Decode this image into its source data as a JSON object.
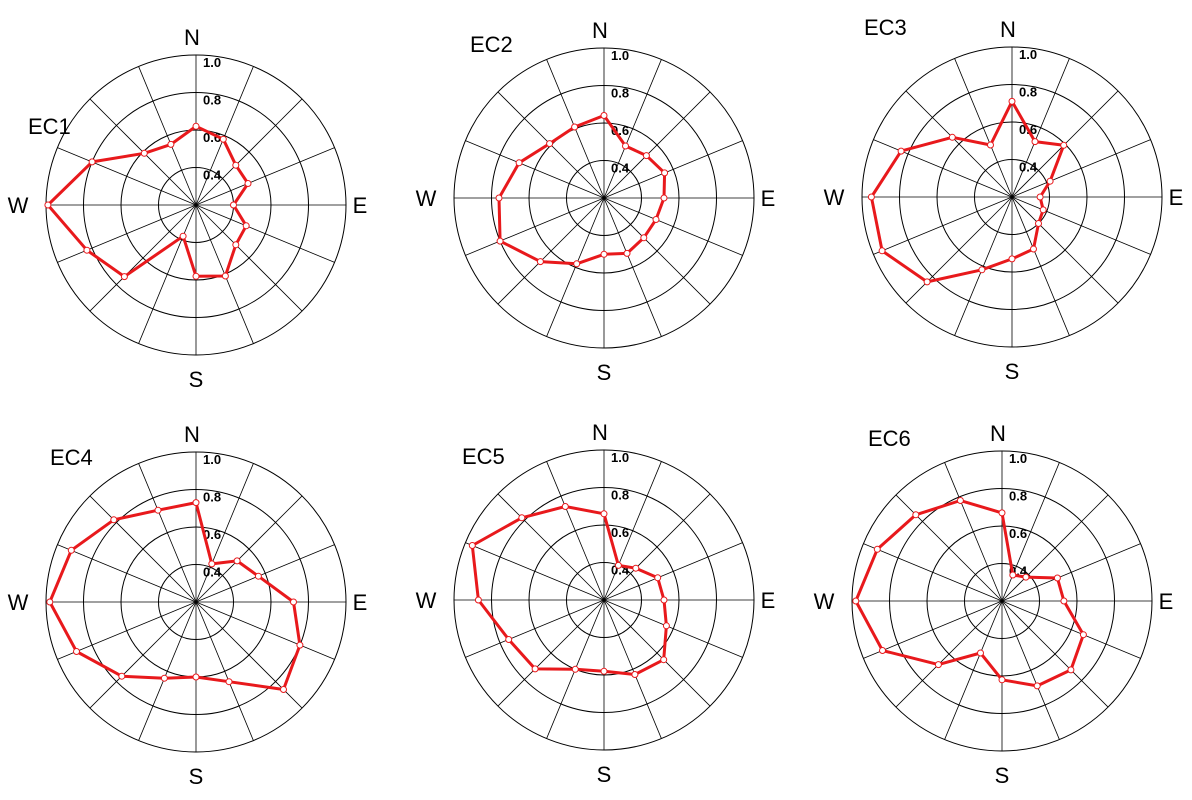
{
  "chart_data": [
    {
      "type": "radar",
      "title": "EC1",
      "direction_labels": {
        "N": "N",
        "E": "E",
        "S": "S",
        "W": "W"
      },
      "rlim": [
        0.2,
        1.0
      ],
      "ring_ticks": [
        0.4,
        0.6,
        0.8,
        1.0
      ],
      "tick_labels": [
        "0.4",
        "0.6",
        "0.8",
        "1.0"
      ],
      "grid": true,
      "directions": 16,
      "values": [
        0.62,
        0.58,
        0.5,
        0.5,
        0.4,
        0.49,
        0.5,
        0.61,
        0.58,
        0.38,
        0.74,
        0.83,
        0.99,
        0.8,
        0.59,
        0.55
      ]
    },
    {
      "type": "radar",
      "title": "EC2",
      "direction_labels": {
        "N": "N",
        "E": "E",
        "S": "S",
        "W": "W"
      },
      "rlim": [
        0.2,
        1.0
      ],
      "ring_ticks": [
        0.4,
        0.6,
        0.8,
        1.0
      ],
      "tick_labels": [
        "0.4",
        "0.6",
        "0.8",
        "1.0"
      ],
      "grid": true,
      "directions": 16,
      "values": [
        0.64,
        0.5,
        0.52,
        0.55,
        0.52,
        0.5,
        0.5,
        0.52,
        0.5,
        0.58,
        0.68,
        0.8,
        0.76,
        0.69,
        0.61,
        0.61
      ]
    },
    {
      "type": "radar",
      "title": "EC3",
      "direction_labels": {
        "N": "N",
        "E": "E",
        "S": "S",
        "W": "W"
      },
      "rlim": [
        0.2,
        1.0
      ],
      "ring_ticks": [
        0.4,
        0.6,
        0.8,
        1.0
      ],
      "tick_labels": [
        "0.4",
        "0.6",
        "0.8",
        "1.0"
      ],
      "grid": true,
      "directions": 16,
      "values": [
        0.71,
        0.52,
        0.59,
        0.42,
        0.35,
        0.38,
        0.4,
        0.5,
        0.53,
        0.62,
        0.84,
        0.95,
        0.95,
        0.84,
        0.65,
        0.5
      ]
    },
    {
      "type": "radar",
      "title": "EC4",
      "direction_labels": {
        "N": "N",
        "E": "E",
        "S": "S",
        "W": "W"
      },
      "rlim": [
        0.2,
        1.0
      ],
      "ring_ticks": [
        0.4,
        0.6,
        0.8,
        1.0
      ],
      "tick_labels": [
        "0.4",
        "0.6",
        "0.8",
        "1.0"
      ],
      "grid": true,
      "directions": 16,
      "values": [
        0.73,
        0.42,
        0.51,
        0.56,
        0.72,
        0.8,
        0.86,
        0.66,
        0.6,
        0.64,
        0.76,
        0.89,
        0.98,
        0.92,
        0.82,
        0.73
      ]
    },
    {
      "type": "radar",
      "title": "EC5",
      "direction_labels": {
        "N": "N",
        "E": "E",
        "S": "S",
        "W": "W"
      },
      "rlim": [
        0.2,
        1.0
      ],
      "ring_ticks": [
        0.4,
        0.6,
        0.8,
        1.0
      ],
      "tick_labels": [
        "0.4",
        "0.6",
        "0.8",
        "1.0"
      ],
      "grid": true,
      "directions": 16,
      "values": [
        0.66,
        0.4,
        0.44,
        0.51,
        0.52,
        0.56,
        0.65,
        0.63,
        0.58,
        0.6,
        0.72,
        0.75,
        0.87,
        0.96,
        0.82,
        0.74
      ]
    },
    {
      "type": "radar",
      "title": "EC6",
      "direction_labels": {
        "N": "N",
        "E": "E",
        "S": "S",
        "W": "W"
      },
      "rlim": [
        0.2,
        1.0
      ],
      "ring_ticks": [
        0.4,
        0.6,
        0.8,
        1.0
      ],
      "tick_labels": [
        "0.4",
        "0.6",
        "0.8",
        "1.0"
      ],
      "grid": true,
      "directions": 16,
      "values": [
        0.67,
        0.35,
        0.38,
        0.52,
        0.53,
        0.67,
        0.72,
        0.69,
        0.62,
        0.5,
        0.68,
        0.89,
        0.98,
        0.92,
        0.85,
        0.78
      ]
    }
  ]
}
